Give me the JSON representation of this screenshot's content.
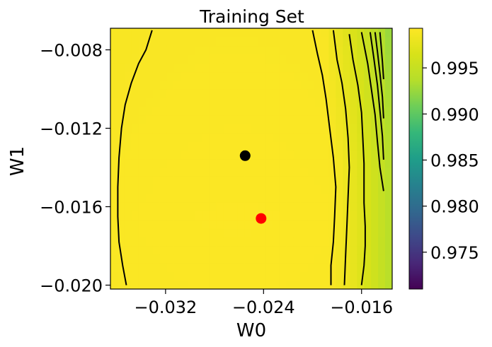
{
  "chart_data": {
    "type": "heatmap",
    "title": "Training Set",
    "xlabel": "W0",
    "ylabel": "W1",
    "xlim": [
      -0.0365,
      -0.0135
    ],
    "ylim": [
      -0.0202,
      -0.0069
    ],
    "xticks": [
      -0.032,
      -0.024,
      -0.016
    ],
    "xtick_labels": [
      "−0.032",
      "−0.024",
      "−0.016"
    ],
    "yticks": [
      -0.008,
      -0.012,
      -0.016,
      -0.02
    ],
    "ytick_labels": [
      "−0.008",
      "−0.012",
      "−0.016",
      "−0.020"
    ],
    "colorbar": {
      "range": [
        0.971,
        0.9993
      ],
      "ticks": [
        0.995,
        0.99,
        0.985,
        0.98,
        0.975
      ],
      "tick_labels": [
        "0.995",
        "0.990",
        "0.985",
        "0.980",
        "0.975"
      ],
      "colormap": "viridis"
    },
    "contours": [
      {
        "level": 0.997,
        "points": [
          [
            -0.0352,
            -0.02
          ],
          [
            -0.0355,
            -0.019
          ],
          [
            -0.0358,
            -0.0178
          ],
          [
            -0.0359,
            -0.0165
          ],
          [
            -0.0359,
            -0.015
          ],
          [
            -0.0358,
            -0.0135
          ],
          [
            -0.0356,
            -0.012
          ],
          [
            -0.0353,
            -0.0108
          ],
          [
            -0.0348,
            -0.0097
          ],
          [
            -0.0342,
            -0.0087
          ],
          [
            -0.0336,
            -0.008
          ],
          [
            -0.0331,
            -0.007
          ]
        ]
      },
      {
        "level": 0.997,
        "points": [
          [
            -0.0185,
            -0.02
          ],
          [
            -0.0185,
            -0.019
          ],
          [
            -0.0183,
            -0.0178
          ],
          [
            -0.0182,
            -0.0165
          ],
          [
            -0.0181,
            -0.015
          ],
          [
            -0.0183,
            -0.0135
          ],
          [
            -0.0186,
            -0.012
          ],
          [
            -0.0189,
            -0.0105
          ],
          [
            -0.0192,
            -0.0093
          ],
          [
            -0.0196,
            -0.0082
          ],
          [
            -0.02,
            -0.007
          ]
        ]
      },
      {
        "level": 0.993,
        "points": [
          [
            -0.0174,
            -0.02
          ],
          [
            -0.0173,
            -0.0185
          ],
          [
            -0.0172,
            -0.017
          ],
          [
            -0.0171,
            -0.0155
          ],
          [
            -0.017,
            -0.014
          ],
          [
            -0.0171,
            -0.0125
          ],
          [
            -0.0173,
            -0.011
          ],
          [
            -0.0176,
            -0.0097
          ],
          [
            -0.018,
            -0.0085
          ],
          [
            -0.0183,
            -0.007
          ]
        ]
      },
      {
        "level": 0.99,
        "points": [
          [
            -0.016,
            -0.02
          ],
          [
            -0.0158,
            -0.019
          ],
          [
            -0.0157,
            -0.018
          ],
          [
            -0.0157,
            -0.017
          ],
          [
            -0.0158,
            -0.0158
          ],
          [
            -0.0158,
            -0.0148
          ],
          [
            -0.0158,
            -0.0138
          ],
          [
            -0.0159,
            -0.0125
          ],
          [
            -0.016,
            -0.0112
          ],
          [
            -0.0163,
            -0.0098
          ],
          [
            -0.0167,
            -0.0085
          ],
          [
            -0.017,
            -0.0072
          ]
        ]
      },
      {
        "level": 0.985,
        "points": [
          [
            -0.0142,
            -0.0152
          ],
          [
            -0.0145,
            -0.014
          ],
          [
            -0.0147,
            -0.0127
          ],
          [
            -0.0149,
            -0.0113
          ],
          [
            -0.0152,
            -0.01
          ],
          [
            -0.0155,
            -0.0087
          ],
          [
            -0.016,
            -0.0071
          ]
        ]
      },
      {
        "level": 0.98,
        "points": [
          [
            -0.0142,
            -0.0136
          ],
          [
            -0.0143,
            -0.0124
          ],
          [
            -0.0145,
            -0.0111
          ],
          [
            -0.0147,
            -0.0098
          ],
          [
            -0.015,
            -0.0084
          ],
          [
            -0.0153,
            -0.0071
          ]
        ]
      },
      {
        "level": 0.975,
        "points": [
          [
            -0.0142,
            -0.0115
          ],
          [
            -0.0143,
            -0.0104
          ],
          [
            -0.0145,
            -0.0092
          ],
          [
            -0.0147,
            -0.0081
          ],
          [
            -0.0149,
            -0.0071
          ]
        ]
      },
      {
        "level": 0.972,
        "points": [
          [
            -0.0142,
            -0.0095
          ],
          [
            -0.0143,
            -0.0086
          ],
          [
            -0.0144,
            -0.0078
          ],
          [
            -0.0145,
            -0.0071
          ]
        ]
      }
    ],
    "points": [
      {
        "name": "black-point",
        "color": "#000000",
        "x": -0.0255,
        "y": -0.0134
      },
      {
        "name": "red-point",
        "color": "#ff0000",
        "x": -0.0242,
        "y": -0.0166
      }
    ]
  }
}
